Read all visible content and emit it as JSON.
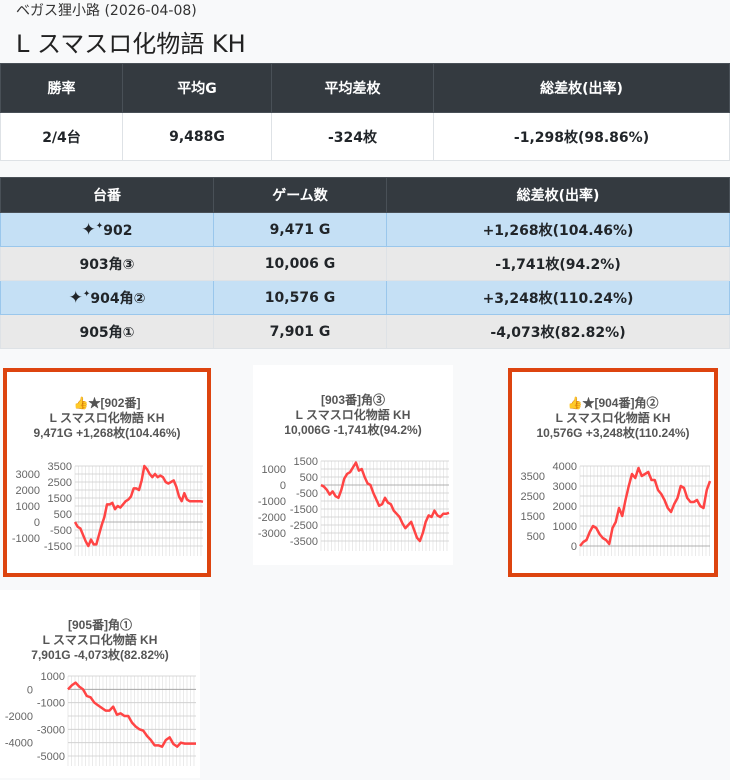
{
  "header": {
    "subtitle": "ベガス狸小路 (2026-04-08)",
    "title": "L スマスロ化物語 KH"
  },
  "summary": {
    "headers": [
      "勝率",
      "平均G",
      "平均差枚",
      "総差枚(出率)"
    ],
    "values": [
      "2/4台",
      "9,488G",
      "-324枚",
      "-1,298枚(98.86%)"
    ]
  },
  "machines": {
    "headers": [
      "台番",
      "ゲーム数",
      "総差枚(出率)"
    ],
    "rows": [
      {
        "icon": "sparkle-icon",
        "num": "902",
        "games": "9,471 G",
        "diff": "+1,268枚(104.46%)",
        "highlight": true
      },
      {
        "icon": "",
        "num": "903角③",
        "games": "10,006 G",
        "diff": "-1,741枚(94.2%)",
        "highlight": false
      },
      {
        "icon": "sparkle-icon",
        "num": "904角②",
        "games": "10,576 G",
        "diff": "+3,248枚(110.24%)",
        "highlight": true
      },
      {
        "icon": "",
        "num": "905角①",
        "games": "7,901 G",
        "diff": "-4,073枚(82.82%)",
        "highlight": false
      }
    ]
  },
  "colors": {
    "highlight_border": "#dd440f",
    "line": "#ff4444",
    "header_bg": "#343a40",
    "row_highlight": "#c5e0f5"
  },
  "chart_data": [
    {
      "type": "line",
      "title": [
        "👍★[902番]",
        "L スマスロ化物語 KH",
        "9,471G +1,268枚(104.46%)"
      ],
      "ylim": [
        -1500,
        3500
      ],
      "yticks": [
        3500,
        3000,
        2500,
        2000,
        1500,
        1000,
        500,
        0,
        -500,
        -1000,
        -1500
      ],
      "highlight": true,
      "values": [
        0,
        -300,
        -400,
        -800,
        -1200,
        -1500,
        -1100,
        -1400,
        -1400,
        -800,
        -200,
        300,
        1100,
        1100,
        1200,
        800,
        1000,
        900,
        1100,
        1300,
        1400,
        1600,
        2100,
        2100,
        2000,
        2600,
        3500,
        3300,
        3000,
        2800,
        3000,
        2800,
        2900,
        2800,
        2500,
        2400,
        2500,
        2600,
        2200,
        1600,
        1300,
        1800,
        1400,
        1300,
        1300,
        1300,
        1300,
        1300,
        1268
      ]
    },
    {
      "type": "line",
      "title": [
        "[903番]角③",
        "L スマスロ化物語 KH",
        "10,006G -1,741枚(94.2%)"
      ],
      "ylim": [
        -3500,
        1500
      ],
      "yticks": [
        1500,
        1000,
        500,
        0,
        -500,
        -1000,
        -1500,
        -2000,
        -2500,
        -3000,
        -3500
      ],
      "highlight": false,
      "values": [
        0,
        -100,
        -300,
        -600,
        -400,
        -700,
        -800,
        -300,
        400,
        700,
        800,
        1100,
        1400,
        900,
        1000,
        500,
        100,
        0,
        -500,
        -900,
        -1300,
        -1200,
        -800,
        -1100,
        -1200,
        -1600,
        -1800,
        -2000,
        -2400,
        -2700,
        -2500,
        -2300,
        -2800,
        -3300,
        -3500,
        -3000,
        -2300,
        -1900,
        -2000,
        -1600,
        -1900,
        -2000,
        -1800,
        -1800,
        -1741
      ]
    },
    {
      "type": "line",
      "title": [
        "👍★[904番]角②",
        "L スマスロ化物語 KH",
        "10,576G +3,248枚(110.24%)"
      ],
      "ylim": [
        0,
        4000
      ],
      "yticks": [
        4000,
        3500,
        3000,
        2500,
        2000,
        1500,
        1000,
        500,
        0
      ],
      "highlight": true,
      "values": [
        0,
        200,
        300,
        700,
        1000,
        900,
        600,
        400,
        300,
        100,
        900,
        1200,
        1900,
        1500,
        2300,
        3000,
        3600,
        3400,
        3900,
        3500,
        3600,
        3700,
        3300,
        3300,
        2800,
        2600,
        2300,
        1900,
        1700,
        2100,
        2400,
        3000,
        2900,
        2400,
        2200,
        2200,
        2300,
        2000,
        1900,
        2800,
        3248
      ]
    },
    {
      "type": "line",
      "title": [
        "[905番]角①",
        "L スマスロ化物語 KH",
        "7,901G -4,073枚(82.82%)"
      ],
      "ylim": [
        -5000,
        1000
      ],
      "yticks": [
        1000,
        0,
        -1000,
        -2000,
        -3000,
        -4000,
        -5000
      ],
      "highlight": false,
      "values": [
        0,
        300,
        500,
        200,
        0,
        -500,
        -600,
        -1000,
        -1200,
        -1400,
        -1600,
        -1600,
        -1300,
        -1900,
        -1800,
        -2000,
        -2000,
        -2500,
        -2800,
        -3000,
        -3100,
        -3500,
        -3800,
        -4200,
        -4200,
        -4300,
        -3800,
        -3600,
        -4100,
        -4300,
        -4000,
        -4073,
        -4073,
        -4073,
        -4073
      ]
    }
  ]
}
